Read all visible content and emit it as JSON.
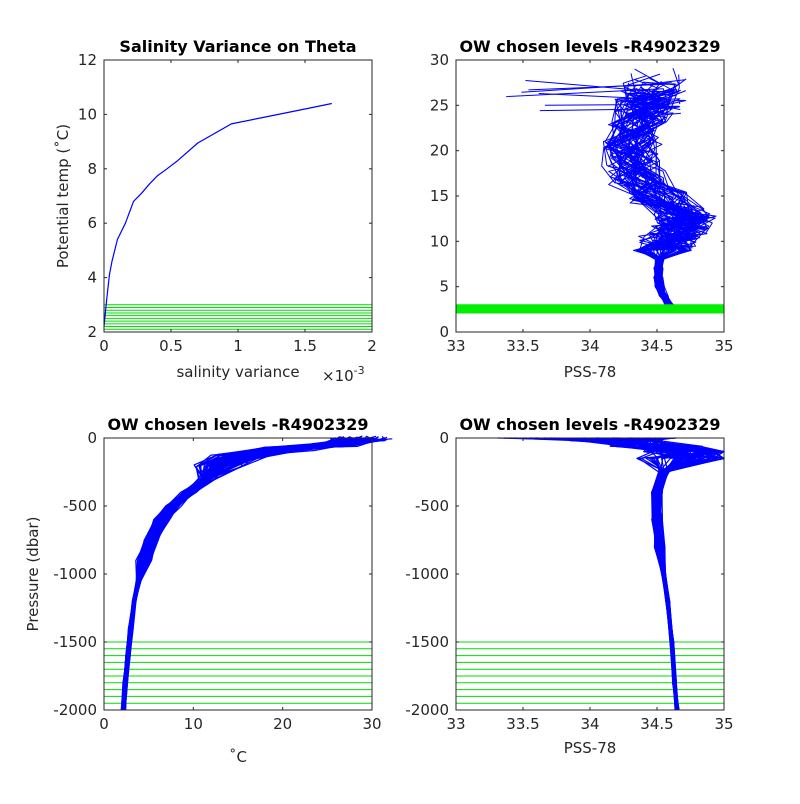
{
  "chart_data": [
    {
      "type": "line",
      "title": "Salinity Variance on Theta",
      "xlabel": "salinity variance",
      "x_exponent": "×10",
      "x_exponent_power": "-3",
      "ylabel": "Potential temp (˚C)",
      "xlim": [
        0,
        0.002
      ],
      "ylim": [
        2,
        12
      ],
      "x_ticks": [
        0,
        0.0005,
        0.001,
        0.0015,
        0.002
      ],
      "x_tick_labels": [
        "0",
        "0.5",
        "1",
        "1.5",
        "2"
      ],
      "y_ticks": [
        2,
        4,
        6,
        8,
        10,
        12
      ],
      "y_tick_labels": [
        "2",
        "4",
        "6",
        "8",
        "10",
        "12"
      ],
      "series": [
        {
          "color": "#0000ff",
          "x": [
            0.0,
            2e-05,
            4e-05,
            6e-05,
            8e-05,
            0.0001,
            0.00013,
            0.00016,
            0.00022,
            0.00028,
            0.00034,
            0.0004,
            0.00047,
            0.00055,
            0.0007,
            0.00095,
            0.0012,
            0.0015,
            0.0017
          ],
          "y": [
            2.2,
            3.2,
            4.1,
            4.6,
            5.0,
            5.4,
            5.7,
            6.0,
            6.8,
            7.1,
            7.45,
            7.75,
            8.0,
            8.3,
            8.95,
            9.65,
            9.9,
            10.2,
            10.4
          ]
        }
      ],
      "reference_lines": {
        "color": "#00dd00",
        "orientation": "horizontal",
        "values": [
          2.1,
          2.2,
          2.3,
          2.4,
          2.5,
          2.6,
          2.7,
          2.8,
          2.9,
          3.0
        ]
      }
    },
    {
      "type": "line",
      "title": "OW chosen levels -R4902329",
      "xlabel": "PSS-78",
      "ylabel": "",
      "xlim": [
        33,
        35
      ],
      "ylim": [
        0,
        30
      ],
      "x_ticks": [
        33,
        33.5,
        34,
        34.5,
        35
      ],
      "x_tick_labels": [
        "33",
        "33.5",
        "34",
        "34.5",
        "35"
      ],
      "y_ticks": [
        0,
        5,
        10,
        15,
        20,
        25,
        30
      ],
      "y_tick_labels": [
        "0",
        "5",
        "10",
        "15",
        "20",
        "25",
        "30"
      ],
      "profile_count": 60,
      "representative_profile": {
        "color": "#0000ff",
        "theta": [
          2.2,
          3.0,
          4.0,
          5.0,
          6.0,
          7.0,
          8.0,
          9.0,
          10.0,
          11.0,
          12.0,
          13.0,
          15.0,
          17.0,
          19.0,
          21.0,
          23.0,
          25.0,
          27.0,
          28.5
        ],
        "salinity": [
          34.64,
          34.59,
          34.55,
          34.52,
          34.51,
          34.51,
          34.52,
          34.54,
          34.58,
          34.66,
          34.72,
          34.7,
          34.5,
          34.35,
          34.3,
          34.32,
          34.35,
          34.4,
          34.45,
          34.5
        ]
      },
      "reference_band": {
        "color": "#00ee00",
        "values": [
          2.1,
          2.2,
          2.3,
          2.4,
          2.5,
          2.6,
          2.7,
          2.8,
          2.9,
          3.0
        ]
      }
    },
    {
      "type": "line",
      "title": "OW chosen levels -R4902329",
      "xlabel": "˚C",
      "ylabel": "Pressure (dbar)",
      "xlim": [
        0,
        30
      ],
      "ylim": [
        -2000,
        0
      ],
      "x_ticks": [
        0,
        10,
        20,
        30
      ],
      "x_tick_labels": [
        "0",
        "10",
        "20",
        "30"
      ],
      "y_ticks": [
        -2000,
        -1500,
        -1000,
        -500,
        0
      ],
      "y_tick_labels": [
        "-2000",
        "-1500",
        "-1000",
        "-500",
        "0"
      ],
      "profile_count": 60,
      "representative_profile": {
        "color": "#0000ff",
        "temperature": [
          29.0,
          28.5,
          26.0,
          21.0,
          15.5,
          13.0,
          11.5,
          9.5,
          7.8,
          6.5,
          5.3,
          4.5,
          3.9,
          3.4,
          3.0,
          2.7,
          2.4,
          2.2
        ],
        "pressure": [
          0,
          -20,
          -50,
          -80,
          -130,
          -200,
          -300,
          -400,
          -500,
          -600,
          -750,
          -900,
          -1050,
          -1200,
          -1400,
          -1600,
          -1800,
          -2000
        ]
      },
      "reference_lines": {
        "color": "#00dd00",
        "orientation": "horizontal",
        "values": [
          -1500,
          -1550,
          -1600,
          -1650,
          -1700,
          -1750,
          -1800,
          -1850,
          -1900,
          -1950,
          -2000
        ]
      }
    },
    {
      "type": "line",
      "title": "OW chosen levels -R4902329",
      "xlabel": "PSS-78",
      "ylabel": "",
      "xlim": [
        33,
        35
      ],
      "ylim": [
        -2000,
        0
      ],
      "x_ticks": [
        33,
        33.5,
        34,
        34.5,
        35
      ],
      "x_tick_labels": [
        "33",
        "33.5",
        "34",
        "34.5",
        "35"
      ],
      "y_ticks": [
        -2000,
        -1500,
        -1000,
        -500,
        0
      ],
      "y_tick_labels": [
        "-2000",
        "-1500",
        "-1000",
        "-500",
        "0"
      ],
      "profile_count": 60,
      "representative_profile": {
        "color": "#0000ff",
        "salinity": [
          34.3,
          34.2,
          34.5,
          34.75,
          34.7,
          34.55,
          34.5,
          34.5,
          34.52,
          34.55,
          34.58,
          34.61,
          34.63,
          34.65
        ],
        "pressure": [
          0,
          -20,
          -60,
          -100,
          -150,
          -250,
          -400,
          -600,
          -800,
          -1000,
          -1200,
          -1500,
          -1800,
          -2000
        ]
      },
      "reference_lines": {
        "color": "#00dd00",
        "orientation": "horizontal",
        "values": [
          -1500,
          -1550,
          -1600,
          -1650,
          -1700,
          -1750,
          -1800,
          -1850,
          -1900,
          -1950,
          -2000
        ]
      }
    }
  ]
}
